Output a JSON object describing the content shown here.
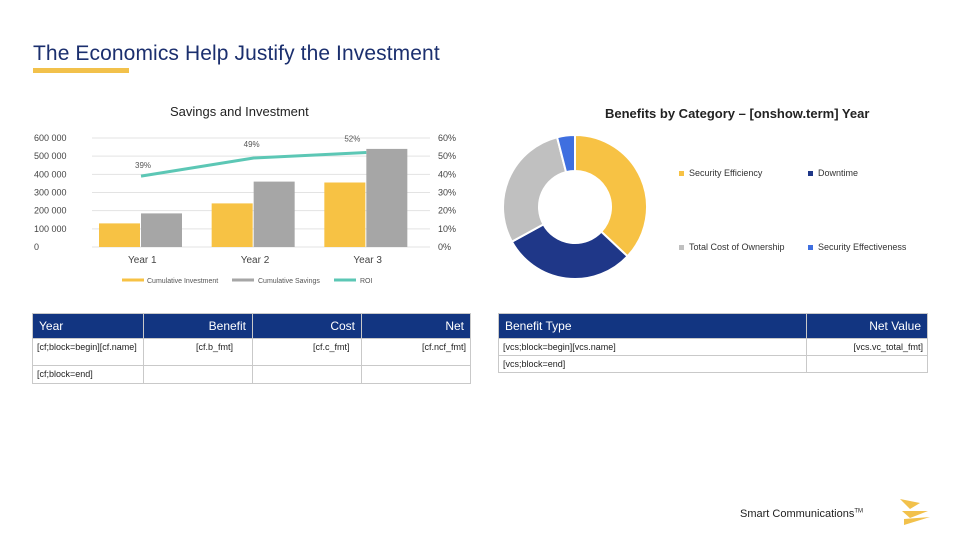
{
  "page": {
    "title": "The Economics Help Justify the Investment",
    "accent": "#f2c14b",
    "brand_text": "Smart Communications",
    "brand_tm": "TM"
  },
  "bar_chart_title": "Savings and Investment",
  "pie_chart_title": "Benefits by Category – [onshow.term] Year",
  "chart_data": [
    {
      "type": "bar",
      "title": "Savings and Investment",
      "categories": [
        "Year 1",
        "Year 2",
        "Year 3"
      ],
      "series": [
        {
          "name": "Cumulative Investment",
          "values": [
            130000,
            240000,
            355000
          ],
          "color": "#f7c244"
        },
        {
          "name": "Cumulative Savings",
          "values": [
            185000,
            360000,
            540000
          ],
          "color": "#a6a6a6"
        },
        {
          "name": "ROI",
          "type": "line",
          "values": [
            39,
            49,
            52
          ],
          "labels": [
            "39%",
            "49%",
            "52%"
          ],
          "color": "#5cc7b5",
          "axis": "right"
        }
      ],
      "ylim": [
        0,
        600000
      ],
      "yticks": [
        "0",
        "100 000",
        "200 000",
        "300 000",
        "400 000",
        "500 000",
        "600 000"
      ],
      "y2lim": [
        0,
        60
      ],
      "y2ticks": [
        "0%",
        "10%",
        "20%",
        "30%",
        "40%",
        "50%",
        "60%"
      ],
      "legend": "bottom"
    },
    {
      "type": "pie",
      "title": "Benefits by Category – [onshow.term] Year",
      "donut": true,
      "slices": [
        {
          "name": "Security Efficiency",
          "value": 37,
          "color": "#f7c244"
        },
        {
          "name": "Downtime",
          "value": 30,
          "color": "#1f3788"
        },
        {
          "name": "Total Cost of Ownership",
          "value": 29,
          "color": "#c0c0c0"
        },
        {
          "name": "Security Effectiveness",
          "value": 4,
          "color": "#3f6fe0"
        }
      ],
      "legend": "right"
    }
  ],
  "left_table": {
    "headers": [
      "Year",
      "Benefit",
      "Cost",
      "Net"
    ],
    "row1": [
      "[cf;block=begin][cf.name]",
      "[cf.b_fmt]",
      "[cf.c_fmt]",
      "[cf.ncf_fmt]"
    ],
    "row2": [
      "[cf;block=end]",
      "",
      "",
      ""
    ]
  },
  "right_table": {
    "headers": [
      "Benefit Type",
      "Net Value"
    ],
    "row1": [
      "[vcs;block=begin][vcs.name]",
      "[vcs.vc_total_fmt]"
    ],
    "row2": [
      "[vcs;block=end]",
      ""
    ]
  }
}
